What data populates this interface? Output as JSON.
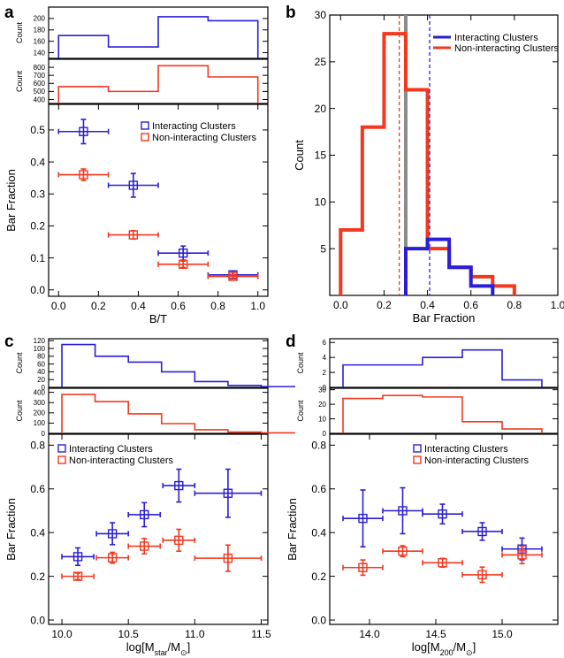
{
  "colors": {
    "interacting": "#2a1fd6",
    "non_interacting": "#f2381f",
    "median": "#8c8c8c"
  },
  "panel_letters": {
    "a": "a",
    "b": "b",
    "c": "c",
    "d": "d"
  },
  "chart_data": [
    {
      "panel": "a",
      "type": "scatter",
      "xlabel": "B/T",
      "ylabel": "Bar Fraction",
      "xlim": [
        -0.05,
        1.05
      ],
      "ylim": [
        -0.02,
        0.58
      ],
      "xticks": [
        "0.0",
        "0.2",
        "0.4",
        "0.6",
        "0.8",
        "1.0"
      ],
      "xtick_values": [
        0,
        0.2,
        0.4,
        0.6,
        0.8,
        1.0
      ],
      "yticks": [
        "0.0",
        "0.1",
        "0.2",
        "0.3",
        "0.4",
        "0.5"
      ],
      "ytick_values": [
        0,
        0.1,
        0.2,
        0.3,
        0.4,
        0.5
      ],
      "legend": [
        "Interacting Clusters",
        "Non-interacting Clusters"
      ],
      "legend_position": "top-right",
      "series": [
        {
          "name": "Interacting Clusters",
          "color_key": "interacting",
          "points": [
            {
              "x": 0.125,
              "y": 0.495,
              "xerr": 0.125,
              "yerr": 0.038
            },
            {
              "x": 0.375,
              "y": 0.327,
              "xerr": 0.125,
              "yerr": 0.037
            },
            {
              "x": 0.625,
              "y": 0.115,
              "xerr": 0.125,
              "yerr": 0.022
            },
            {
              "x": 0.875,
              "y": 0.047,
              "xerr": 0.125,
              "yerr": 0.012
            }
          ]
        },
        {
          "name": "Non-interacting Clusters",
          "color_key": "non_interacting",
          "points": [
            {
              "x": 0.125,
              "y": 0.36,
              "xerr": 0.125,
              "yerr": 0.018
            },
            {
              "x": 0.375,
              "y": 0.172,
              "xerr": 0.125,
              "yerr": 0.013
            },
            {
              "x": 0.625,
              "y": 0.08,
              "xerr": 0.125,
              "yerr": 0.01
            },
            {
              "x": 0.875,
              "y": 0.042,
              "xerr": 0.125,
              "yerr": 0.006
            }
          ]
        }
      ],
      "histograms": [
        {
          "color_key": "interacting",
          "ylabel": "Count",
          "ylim": [
            130,
            220
          ],
          "yticks": [
            "140",
            "160",
            "180",
            "200"
          ],
          "ytick_values": [
            140,
            160,
            180,
            200
          ],
          "edges": [
            0,
            0.25,
            0.5,
            0.75,
            1.0
          ],
          "counts": [
            170,
            150,
            203,
            196
          ]
        },
        {
          "color_key": "non_interacting",
          "ylabel": "Count",
          "ylim": [
            350,
            900
          ],
          "yticks": [
            "400",
            "500",
            "600",
            "700",
            "800"
          ],
          "ytick_values": [
            400,
            500,
            600,
            700,
            800
          ],
          "edges": [
            0,
            0.25,
            0.5,
            0.75,
            1.0
          ],
          "counts": [
            560,
            500,
            820,
            680
          ]
        }
      ]
    },
    {
      "panel": "b",
      "type": "histogram",
      "xlabel": "Bar Fraction",
      "ylabel": "Count",
      "xlim": [
        -0.05,
        1.0
      ],
      "ylim": [
        0,
        30
      ],
      "xticks": [
        "0.0",
        "0.2",
        "0.4",
        "0.6",
        "0.8",
        "1.0"
      ],
      "xtick_values": [
        0,
        0.2,
        0.4,
        0.6,
        0.8,
        1.0
      ],
      "yticks": [
        "5",
        "10",
        "15",
        "20",
        "25",
        "30"
      ],
      "ytick_values": [
        5,
        10,
        15,
        20,
        25,
        30
      ],
      "legend": [
        "Interacting Clusters",
        "Non-interacting Clusters"
      ],
      "legend_position": "top-right",
      "series": [
        {
          "name": "Interacting Clusters",
          "color_key": "interacting",
          "edges": [
            0.3,
            0.4,
            0.5,
            0.6,
            0.7
          ],
          "counts": [
            5,
            6,
            3,
            1
          ]
        },
        {
          "name": "Non-interacting Clusters",
          "color_key": "non_interacting",
          "edges": [
            0.0,
            0.1,
            0.2,
            0.3,
            0.4,
            0.5,
            0.6,
            0.7,
            0.8
          ],
          "counts": [
            7,
            18,
            28,
            22,
            5,
            3,
            2,
            1
          ]
        }
      ],
      "median_line": 0.3,
      "mean_interacting": 0.41,
      "mean_non_interacting": 0.27
    },
    {
      "panel": "c",
      "type": "scatter",
      "xlabel_main": "log[M",
      "xlabel_sub": "star",
      "xlabel_mid": "/M",
      "xlabel_sun": "⊙",
      "xlabel_end": "]",
      "ylabel": "Bar Fraction",
      "xlim": [
        9.9,
        11.55
      ],
      "ylim": [
        -0.02,
        0.85
      ],
      "xticks": [
        "10.0",
        "10.5",
        "11.0",
        "11.5"
      ],
      "xtick_values": [
        10.0,
        10.5,
        11.0,
        11.5
      ],
      "yticks": [
        "0.0",
        "0.2",
        "0.4",
        "0.6",
        "0.8"
      ],
      "ytick_values": [
        0,
        0.2,
        0.4,
        0.6,
        0.8
      ],
      "legend": [
        "Interacting Clusters",
        "Non-interacting Clusters"
      ],
      "legend_position": "top-left",
      "series": [
        {
          "name": "Interacting Clusters",
          "color_key": "interacting",
          "points": [
            {
              "x": 10.12,
              "y": 0.29,
              "xerr": 0.12,
              "yerr": 0.04
            },
            {
              "x": 10.38,
              "y": 0.395,
              "xerr": 0.12,
              "yerr": 0.05
            },
            {
              "x": 10.62,
              "y": 0.482,
              "xerr": 0.12,
              "yerr": 0.055
            },
            {
              "x": 10.88,
              "y": 0.615,
              "xerr": 0.12,
              "yerr": 0.075
            },
            {
              "x": 11.25,
              "y": 0.58,
              "xerr": 0.25,
              "yerr": 0.11
            }
          ]
        },
        {
          "name": "Non-interacting Clusters",
          "color_key": "non_interacting",
          "points": [
            {
              "x": 10.12,
              "y": 0.2,
              "xerr": 0.12,
              "yerr": 0.015
            },
            {
              "x": 10.38,
              "y": 0.285,
              "xerr": 0.12,
              "yerr": 0.025
            },
            {
              "x": 10.62,
              "y": 0.338,
              "xerr": 0.12,
              "yerr": 0.035
            },
            {
              "x": 10.88,
              "y": 0.365,
              "xerr": 0.12,
              "yerr": 0.05
            },
            {
              "x": 11.25,
              "y": 0.283,
              "xerr": 0.25,
              "yerr": 0.06
            }
          ]
        }
      ],
      "histograms": [
        {
          "color_key": "interacting",
          "ylabel": "Count",
          "ylim": [
            0,
            125
          ],
          "yticks": [
            "0",
            "20",
            "40",
            "60",
            "80",
            "100",
            "120"
          ],
          "ytick_values": [
            0,
            20,
            40,
            60,
            80,
            100,
            120
          ],
          "edges": [
            10.0,
            10.25,
            10.5,
            10.75,
            11.0,
            11.25,
            11.5,
            11.75
          ],
          "counts": [
            110,
            80,
            65,
            40,
            15,
            5,
            2
          ]
        },
        {
          "color_key": "non_interacting",
          "ylabel": "Count",
          "ylim": [
            0,
            440
          ],
          "yticks": [
            "0",
            "100",
            "200",
            "300",
            "400"
          ],
          "ytick_values": [
            0,
            100,
            200,
            300,
            400
          ],
          "edges": [
            10.0,
            10.25,
            10.5,
            10.75,
            11.0,
            11.25,
            11.5,
            11.75
          ],
          "counts": [
            380,
            310,
            190,
            95,
            35,
            12,
            5
          ]
        }
      ]
    },
    {
      "panel": "d",
      "type": "scatter",
      "xlabel_main": "log[M",
      "xlabel_sub": "200",
      "xlabel_mid": "/M",
      "xlabel_sun": "⊙",
      "xlabel_end": "]",
      "ylabel": "Bar Fraction",
      "xlim": [
        13.7,
        15.42
      ],
      "ylim": [
        -0.02,
        0.85
      ],
      "xticks": [
        "14.0",
        "14.5",
        "15.0"
      ],
      "xtick_values": [
        14.0,
        14.5,
        15.0
      ],
      "yticks": [
        "0.0",
        "0.2",
        "0.4",
        "0.6",
        "0.8"
      ],
      "ytick_values": [
        0,
        0.2,
        0.4,
        0.6,
        0.8
      ],
      "legend": [
        "Interacting Clusters",
        "Non-interacting Clusters"
      ],
      "legend_position": "top-right",
      "series": [
        {
          "name": "Interacting Clusters",
          "color_key": "interacting",
          "points": [
            {
              "x": 13.95,
              "y": 0.465,
              "xerr": 0.15,
              "yerr": 0.13
            },
            {
              "x": 14.25,
              "y": 0.5,
              "xerr": 0.15,
              "yerr": 0.105
            },
            {
              "x": 14.55,
              "y": 0.485,
              "xerr": 0.15,
              "yerr": 0.045
            },
            {
              "x": 14.85,
              "y": 0.405,
              "xerr": 0.15,
              "yerr": 0.04
            },
            {
              "x": 15.15,
              "y": 0.325,
              "xerr": 0.15,
              "yerr": 0.05
            }
          ]
        },
        {
          "name": "Non-interacting Clusters",
          "color_key": "non_interacting",
          "points": [
            {
              "x": 13.95,
              "y": 0.24,
              "xerr": 0.15,
              "yerr": 0.035
            },
            {
              "x": 14.25,
              "y": 0.315,
              "xerr": 0.15,
              "yerr": 0.025
            },
            {
              "x": 14.55,
              "y": 0.262,
              "xerr": 0.15,
              "yerr": 0.02
            },
            {
              "x": 14.85,
              "y": 0.207,
              "xerr": 0.15,
              "yerr": 0.035
            },
            {
              "x": 15.15,
              "y": 0.298,
              "xerr": 0.15,
              "yerr": 0.04
            }
          ]
        }
      ],
      "histograms": [
        {
          "color_key": "interacting",
          "ylabel": "Count",
          "ylim": [
            0,
            6.5
          ],
          "yticks": [
            "0",
            "2",
            "4",
            "6"
          ],
          "ytick_values": [
            0,
            2,
            4,
            6
          ],
          "edges": [
            13.8,
            14.1,
            14.4,
            14.7,
            15.0,
            15.3
          ],
          "counts": [
            3,
            3,
            4,
            5,
            1
          ]
        },
        {
          "color_key": "non_interacting",
          "ylabel": "Count",
          "ylim": [
            0,
            31
          ],
          "yticks": [
            "0",
            "10",
            "20",
            "30"
          ],
          "ytick_values": [
            0,
            10,
            20,
            30
          ],
          "edges": [
            13.8,
            14.1,
            14.4,
            14.7,
            15.0,
            15.3
          ],
          "counts": [
            24,
            26,
            25,
            8,
            3
          ]
        }
      ]
    }
  ]
}
